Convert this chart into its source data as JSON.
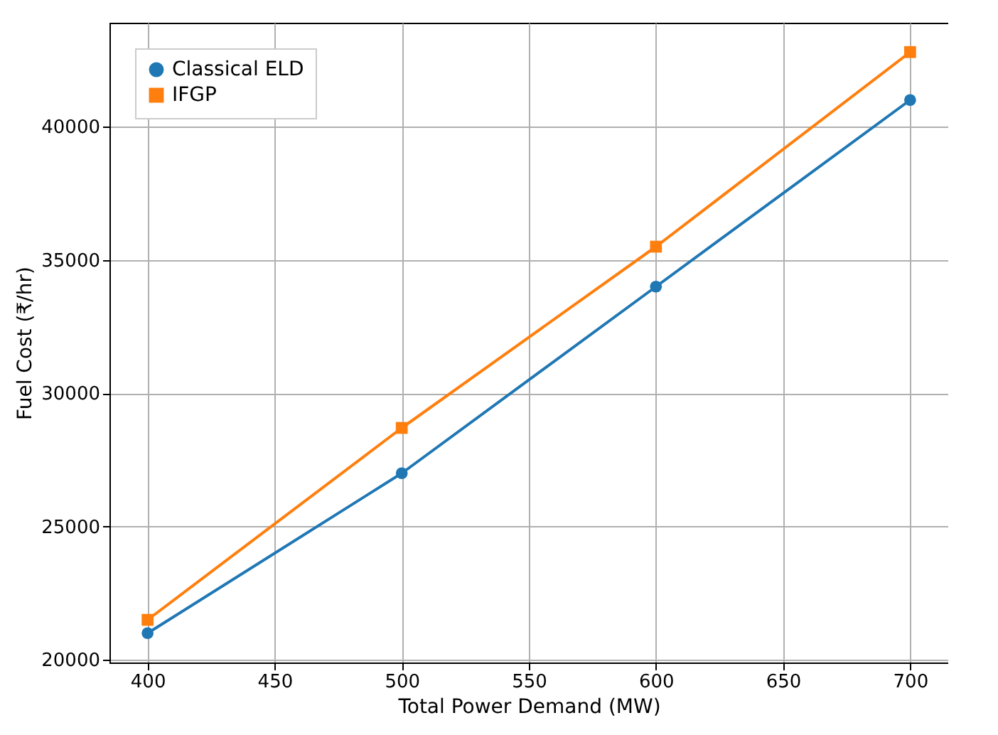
{
  "chart_data": {
    "type": "line",
    "xlabel": "Total Power Demand (MW)",
    "ylabel": "Fuel Cost (₹/hr)",
    "x": [
      400,
      500,
      600,
      700
    ],
    "series": [
      {
        "name": "Classical ELD",
        "color": "#1f77b4",
        "marker": "circle",
        "values": [
          21000,
          27000,
          34000,
          41000
        ]
      },
      {
        "name": "IFGP",
        "color": "#ff7f0e",
        "marker": "square",
        "values": [
          21500,
          28700,
          35500,
          42800
        ]
      }
    ],
    "xlim": [
      385,
      715
    ],
    "xticks": [
      400,
      450,
      500,
      550,
      600,
      650,
      700
    ],
    "ylim": [
      19900,
      43900
    ],
    "yticks": [
      20000,
      25000,
      30000,
      35000,
      40000
    ],
    "grid": true,
    "legend": "top left",
    "line_style": "solid"
  }
}
